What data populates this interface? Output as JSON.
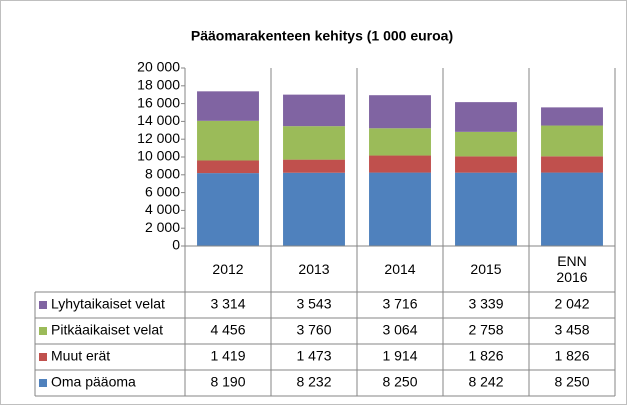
{
  "chart_data": {
    "type": "stacked_bar",
    "title": "Pääomarakenteen kehitys (1 000 euroa)",
    "categories": [
      "2012",
      "2013",
      "2014",
      "2015",
      "ENN 2016"
    ],
    "series": [
      {
        "name": "Oma pääoma",
        "color": "#4f81bd",
        "values": [
          8190,
          8232,
          8250,
          8242,
          8250
        ],
        "value_labels": [
          "8 190",
          "8 232",
          "8 250",
          "8 242",
          "8 250"
        ]
      },
      {
        "name": "Muut erät",
        "color": "#c0504d",
        "values": [
          1419,
          1473,
          1914,
          1826,
          1826
        ],
        "value_labels": [
          "1 419",
          "1 473",
          "1 914",
          "1 826",
          "1 826"
        ]
      },
      {
        "name": "Pitkäaikaiset velat",
        "color": "#9bbb59",
        "values": [
          4456,
          3760,
          3064,
          2758,
          3458
        ],
        "value_labels": [
          "4 456",
          "3 760",
          "3 064",
          "2 758",
          "3 458"
        ]
      },
      {
        "name": "Lyhytaikaiset velat",
        "color": "#8064a2",
        "values": [
          3314,
          3543,
          3716,
          3339,
          2042
        ],
        "value_labels": [
          "3 314",
          "3 543",
          "3 716",
          "3 339",
          "2 042"
        ]
      }
    ],
    "ylim": [
      0,
      20000
    ],
    "yticks": [
      0,
      {
        "value": 2000,
        "label": "2 000"
      },
      {
        "value": 4000,
        "label": "4 000"
      },
      {
        "value": 6000,
        "label": "6 000"
      },
      {
        "value": 8000,
        "label": "8 000"
      },
      {
        "value": 10000,
        "label": "10 000"
      },
      {
        "value": 12000,
        "label": "12 000"
      },
      {
        "value": 14000,
        "label": "14 000"
      },
      {
        "value": 16000,
        "label": "16 000"
      },
      {
        "value": 18000,
        "label": "18 000"
      },
      {
        "value": 20000,
        "label": "20 000"
      }
    ]
  }
}
